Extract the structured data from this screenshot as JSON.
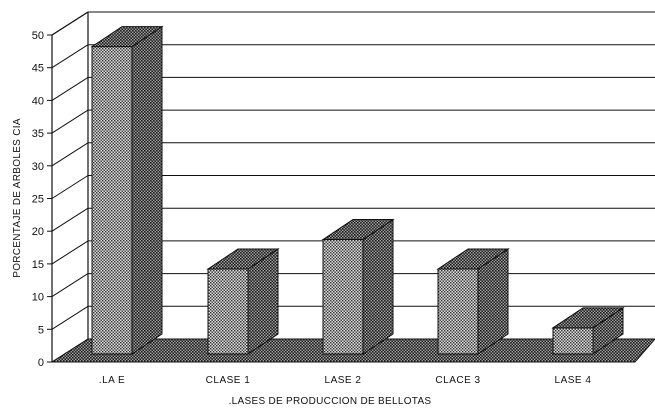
{
  "chart_data": {
    "type": "bar",
    "title": "",
    "xlabel": ".LASES DE PRODUCCION DE BELLOTAS",
    "ylabel": "PORCENTAJE DE ARBOLES  CIA",
    "categories": [
      ".LA  E",
      "CLASE 1",
      "LASE 2",
      "CLACE 3",
      "LASE 4"
    ],
    "values": [
      47,
      13,
      17.5,
      13,
      4
    ],
    "ylim": [
      0,
      50
    ],
    "yticks": [
      "0",
      "5",
      "10",
      "15",
      "20",
      "25",
      "30",
      "35",
      "40",
      "45",
      "50"
    ],
    "grid": true,
    "style": "3d",
    "colors": {
      "bar_fill": "#8a8a8a",
      "floor": "#7a7a7a",
      "grid": "#111111"
    }
  }
}
